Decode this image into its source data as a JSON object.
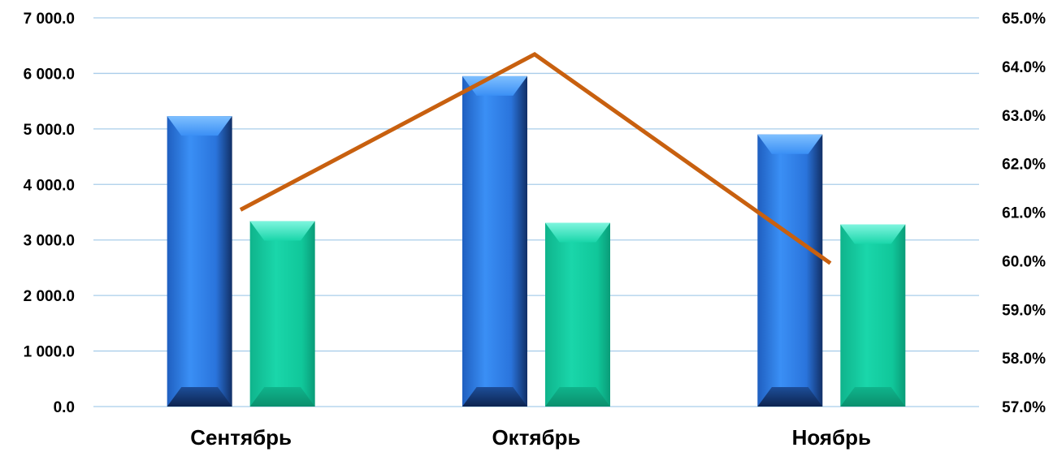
{
  "chart_data": {
    "type": "bar",
    "title": "",
    "xlabel": "",
    "ylabel": "",
    "categories": [
      "Сентябрь",
      "Октябрь",
      "Ноябрь"
    ],
    "series": [
      {
        "type": "bar",
        "axis": "left",
        "color": "#2f84ee",
        "values": [
          5230,
          5950,
          4900
        ]
      },
      {
        "type": "bar",
        "axis": "left",
        "color": "#14cfa2",
        "values": [
          3340,
          3310,
          3280
        ]
      },
      {
        "type": "line",
        "axis": "right",
        "color": "#c8600f",
        "values": [
          61.05,
          64.25,
          59.95
        ]
      }
    ],
    "ylim": [
      0,
      7000
    ],
    "y2lim": [
      57,
      65
    ],
    "yticks": [
      "0.0",
      "1 000.0",
      "2 000.0",
      "3 000.0",
      "4 000.0",
      "5 000.0",
      "6 000.0",
      "7 000.0"
    ],
    "y2ticks": [
      "57.0%",
      "58.0%",
      "59.0%",
      "60.0%",
      "61.0%",
      "62.0%",
      "63.0%",
      "64.0%",
      "65.0%"
    ],
    "grid": true,
    "legend": "none"
  }
}
